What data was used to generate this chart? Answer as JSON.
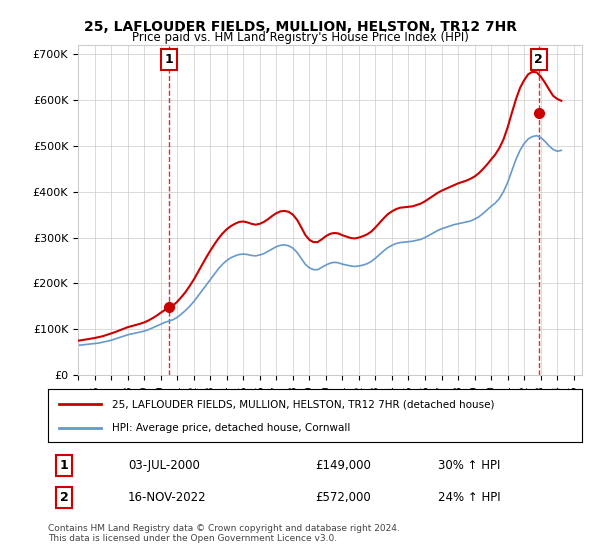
{
  "title": "25, LAFLOUDER FIELDS, MULLION, HELSTON, TR12 7HR",
  "subtitle": "Price paid vs. HM Land Registry's House Price Index (HPI)",
  "legend_line1": "25, LAFLOUDER FIELDS, MULLION, HELSTON, TR12 7HR (detached house)",
  "legend_line2": "HPI: Average price, detached house, Cornwall",
  "transaction1_label": "1",
  "transaction1_date": "03-JUL-2000",
  "transaction1_price": "£149,000",
  "transaction1_hpi": "30% ↑ HPI",
  "transaction1_year": 2000.5,
  "transaction1_value": 149000,
  "transaction2_label": "2",
  "transaction2_date": "16-NOV-2022",
  "transaction2_price": "£572,000",
  "transaction2_hpi": "24% ↑ HPI",
  "transaction2_year": 2022.88,
  "transaction2_value": 572000,
  "red_color": "#cc0000",
  "blue_color": "#6699cc",
  "dashed_color": "#cc0000",
  "background_color": "#ffffff",
  "grid_color": "#cccccc",
  "ylim": [
    0,
    720000
  ],
  "yticks": [
    0,
    100000,
    200000,
    300000,
    400000,
    500000,
    600000,
    700000
  ],
  "ytick_labels": [
    "£0",
    "£100K",
    "£200K",
    "£300K",
    "£400K",
    "£500K",
    "£600K",
    "£700K"
  ],
  "xmin": 1995.0,
  "xmax": 2025.5,
  "footer": "Contains HM Land Registry data © Crown copyright and database right 2024.\nThis data is licensed under the Open Government Licence v3.0.",
  "hpi_years": [
    1995,
    1995.25,
    1995.5,
    1995.75,
    1996,
    1996.25,
    1996.5,
    1996.75,
    1997,
    1997.25,
    1997.5,
    1997.75,
    1998,
    1998.25,
    1998.5,
    1998.75,
    1999,
    1999.25,
    1999.5,
    1999.75,
    2000,
    2000.25,
    2000.5,
    2000.75,
    2001,
    2001.25,
    2001.5,
    2001.75,
    2002,
    2002.25,
    2002.5,
    2002.75,
    2003,
    2003.25,
    2003.5,
    2003.75,
    2004,
    2004.25,
    2004.5,
    2004.75,
    2005,
    2005.25,
    2005.5,
    2005.75,
    2006,
    2006.25,
    2006.5,
    2006.75,
    2007,
    2007.25,
    2007.5,
    2007.75,
    2008,
    2008.25,
    2008.5,
    2008.75,
    2009,
    2009.25,
    2009.5,
    2009.75,
    2010,
    2010.25,
    2010.5,
    2010.75,
    2011,
    2011.25,
    2011.5,
    2011.75,
    2012,
    2012.25,
    2012.5,
    2012.75,
    2013,
    2013.25,
    2013.5,
    2013.75,
    2014,
    2014.25,
    2014.5,
    2014.75,
    2015,
    2015.25,
    2015.5,
    2015.75,
    2016,
    2016.25,
    2016.5,
    2016.75,
    2017,
    2017.25,
    2017.5,
    2017.75,
    2018,
    2018.25,
    2018.5,
    2018.75,
    2019,
    2019.25,
    2019.5,
    2019.75,
    2020,
    2020.25,
    2020.5,
    2020.75,
    2021,
    2021.25,
    2021.5,
    2021.75,
    2022,
    2022.25,
    2022.5,
    2022.75,
    2023,
    2023.25,
    2023.5,
    2023.75,
    2024,
    2024.25
  ],
  "hpi_values": [
    65000,
    66000,
    67000,
    68000,
    69000,
    70000,
    72000,
    74000,
    76000,
    79000,
    82000,
    85000,
    88000,
    90000,
    92000,
    94000,
    96000,
    99000,
    103000,
    107000,
    111000,
    115000,
    118000,
    121000,
    126000,
    133000,
    141000,
    150000,
    160000,
    172000,
    184000,
    196000,
    208000,
    220000,
    232000,
    242000,
    250000,
    256000,
    260000,
    263000,
    264000,
    263000,
    261000,
    260000,
    262000,
    265000,
    270000,
    275000,
    280000,
    283000,
    284000,
    282000,
    277000,
    268000,
    255000,
    242000,
    234000,
    230000,
    230000,
    235000,
    240000,
    244000,
    246000,
    245000,
    242000,
    240000,
    238000,
    237000,
    238000,
    240000,
    243000,
    248000,
    255000,
    263000,
    271000,
    278000,
    283000,
    287000,
    289000,
    290000,
    291000,
    292000,
    294000,
    296000,
    300000,
    305000,
    310000,
    315000,
    319000,
    322000,
    325000,
    328000,
    330000,
    332000,
    334000,
    336000,
    340000,
    345000,
    352000,
    360000,
    368000,
    375000,
    385000,
    400000,
    420000,
    445000,
    470000,
    490000,
    505000,
    515000,
    520000,
    522000,
    518000,
    510000,
    500000,
    492000,
    488000,
    490000
  ],
  "red_hpi_years": [
    1995,
    1995.25,
    1995.5,
    1995.75,
    1996,
    1996.25,
    1996.5,
    1996.75,
    1997,
    1997.25,
    1997.5,
    1997.75,
    1998,
    1998.25,
    1998.5,
    1998.75,
    1999,
    1999.25,
    1999.5,
    1999.75,
    2000,
    2000.25,
    2000.5,
    2000.75,
    2001,
    2001.25,
    2001.5,
    2001.75,
    2002,
    2002.25,
    2002.5,
    2002.75,
    2003,
    2003.25,
    2003.5,
    2003.75,
    2004,
    2004.25,
    2004.5,
    2004.75,
    2005,
    2005.25,
    2005.5,
    2005.75,
    2006,
    2006.25,
    2006.5,
    2006.75,
    2007,
    2007.25,
    2007.5,
    2007.75,
    2008,
    2008.25,
    2008.5,
    2008.75,
    2009,
    2009.25,
    2009.5,
    2009.75,
    2010,
    2010.25,
    2010.5,
    2010.75,
    2011,
    2011.25,
    2011.5,
    2011.75,
    2012,
    2012.25,
    2012.5,
    2012.75,
    2013,
    2013.25,
    2013.5,
    2013.75,
    2014,
    2014.25,
    2014.5,
    2014.75,
    2015,
    2015.25,
    2015.5,
    2015.75,
    2016,
    2016.25,
    2016.5,
    2016.75,
    2017,
    2017.25,
    2017.5,
    2017.75,
    2018,
    2018.25,
    2018.5,
    2018.75,
    2019,
    2019.25,
    2019.5,
    2019.75,
    2020,
    2020.25,
    2020.5,
    2020.75,
    2021,
    2021.25,
    2021.5,
    2021.75,
    2022,
    2022.25,
    2022.5,
    2022.75,
    2023,
    2023.25,
    2023.5,
    2023.75,
    2024,
    2024.25
  ],
  "red_values": [
    75000,
    76500,
    78000,
    79500,
    81000,
    83000,
    85000,
    88000,
    91000,
    94000,
    97500,
    101000,
    104500,
    107000,
    109500,
    112000,
    115000,
    119000,
    124000,
    129500,
    136000,
    142000,
    147000,
    152000,
    160000,
    170000,
    181000,
    194000,
    208000,
    224000,
    240000,
    256000,
    271000,
    285000,
    298000,
    309000,
    318000,
    325000,
    330000,
    334000,
    335000,
    333000,
    330000,
    328000,
    330000,
    334000,
    340000,
    347000,
    353000,
    357000,
    358000,
    356000,
    350000,
    339000,
    323000,
    306000,
    295000,
    290000,
    290000,
    296000,
    303000,
    308000,
    310000,
    309000,
    305000,
    302000,
    299000,
    298000,
    300000,
    303000,
    307000,
    313000,
    322000,
    332000,
    342000,
    351000,
    357000,
    362000,
    365000,
    366000,
    367000,
    368000,
    371000,
    374000,
    379000,
    385000,
    391000,
    397000,
    402000,
    406000,
    410000,
    414000,
    418000,
    421000,
    424000,
    428000,
    433000,
    440000,
    449000,
    459000,
    470000,
    481000,
    495000,
    514000,
    540000,
    571000,
    601000,
    626000,
    643000,
    656000,
    661000,
    660000,
    651000,
    638000,
    623000,
    609000,
    602000,
    598000
  ]
}
